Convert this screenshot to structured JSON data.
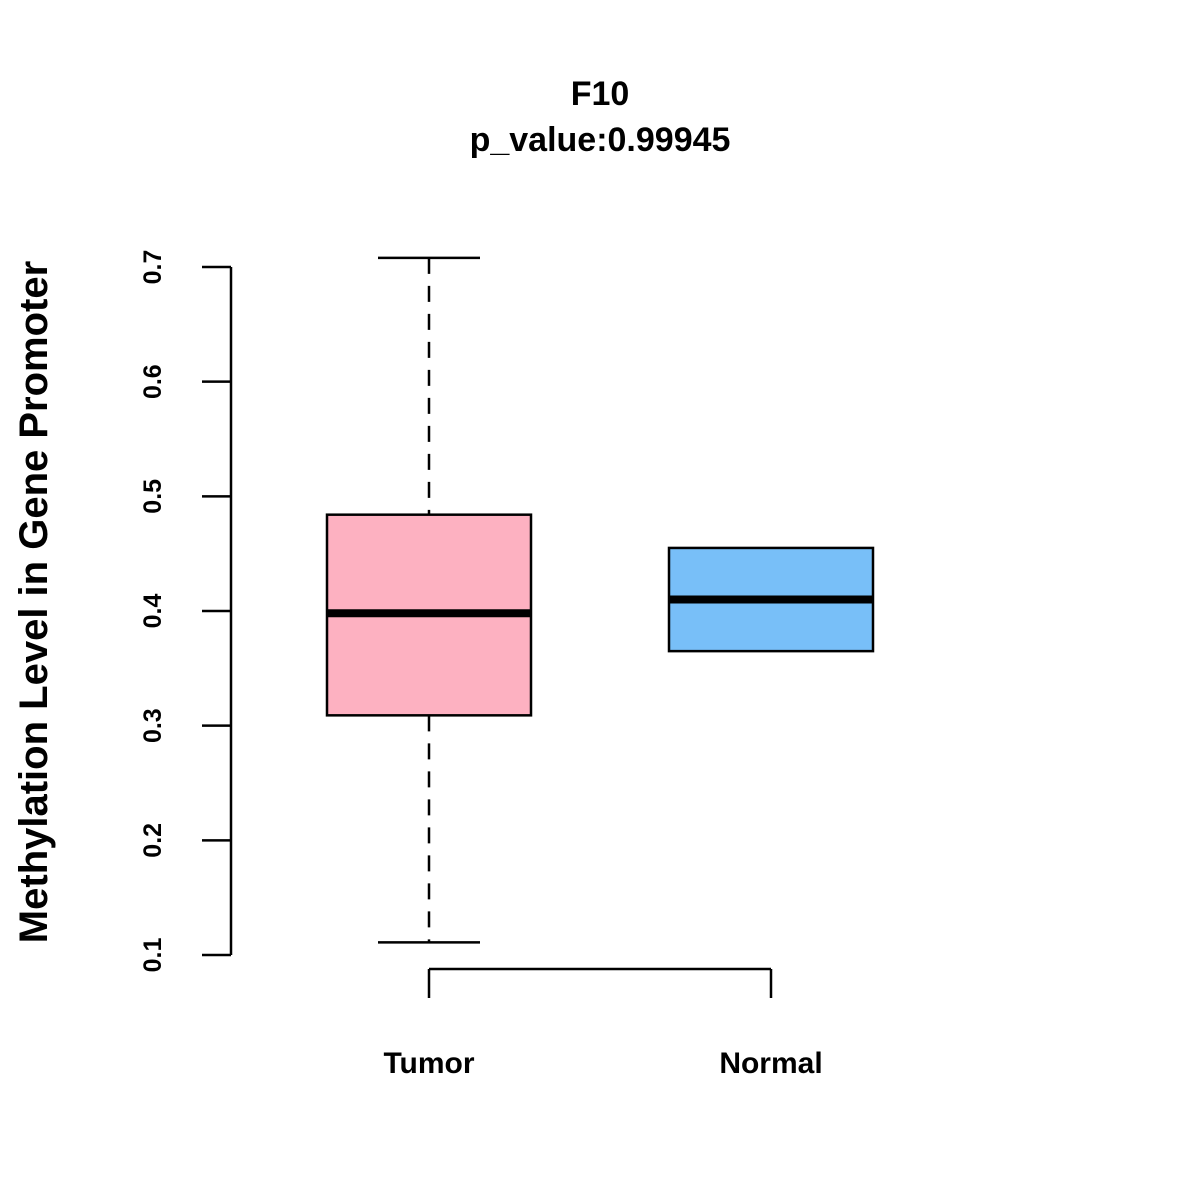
{
  "chart_data": {
    "type": "box",
    "title": "F10",
    "subtitle": "p_value:0.99945",
    "xlabel": "",
    "ylabel": "Methylation Level in Gene Promoter",
    "ylim": [
      0.1,
      0.7
    ],
    "yticks": [
      "0.1",
      "0.2",
      "0.3",
      "0.4",
      "0.5",
      "0.6",
      "0.7"
    ],
    "categories": [
      "Tumor",
      "Normal"
    ],
    "series": [
      {
        "name": "Tumor",
        "min": 0.111,
        "q1": 0.309,
        "median": 0.398,
        "q3": 0.484,
        "max": 0.708,
        "color": "#FDB1C1"
      },
      {
        "name": "Normal",
        "min": 0.365,
        "q1": 0.365,
        "median": 0.41,
        "q3": 0.455,
        "max": 0.455,
        "color": "#78BFF8"
      }
    ]
  }
}
